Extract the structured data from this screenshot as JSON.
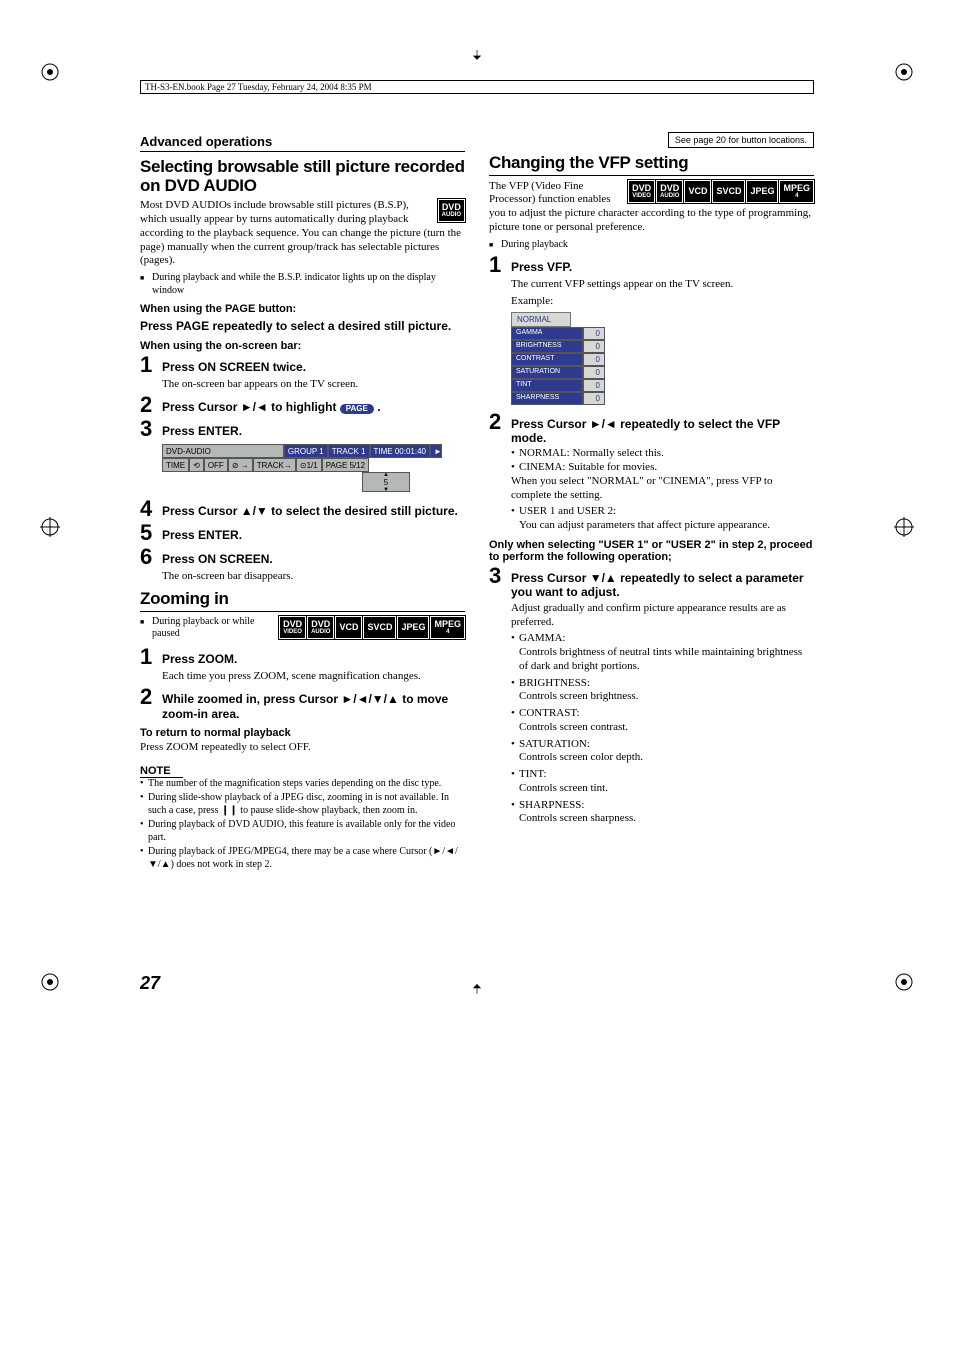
{
  "header_line": "TH-S3-EN.book  Page 27  Tuesday, February 24, 2004  8:35 PM",
  "section_header": "Advanced operations",
  "see_page": "See page 20 for button locations.",
  "page_number": "27",
  "badges": {
    "dvd_video": {
      "t": "DVD",
      "s": "VIDEO"
    },
    "dvd_audio": {
      "t": "DVD",
      "s": "AUDIO"
    },
    "vcd": "VCD",
    "svcd": "SVCD",
    "jpeg": "JPEG",
    "mpeg4": {
      "t": "MPEG",
      "s": "4"
    }
  },
  "left": {
    "topic1": "Selecting browsable still picture recorded on DVD AUDIO",
    "intro1": "Most DVD AUDIOs include browsable still pictures (B.S.P), which usually appear by turns automatically during playback according to the playback sequence. You can change the picture (turn the page) manually when the current group/track has selectable pictures (pages).",
    "bullet1": "During playback and while the B.S.P. indicator lights up on the display window",
    "when_page": "When using the PAGE button:",
    "press_page": "Press PAGE repeatedly to select a desired still picture.",
    "when_osb": "When using the on-screen bar:",
    "s1": "Press ON SCREEN twice.",
    "s1_sub": "The on-screen bar appears on the TV screen.",
    "s2": "Press Cursor ►/◄ to highlight ",
    "s2_pill": "PAGE",
    "s3": "Press ENTER.",
    "osd": {
      "label": "DVD-AUDIO",
      "group": "GROUP 1",
      "track": "TRACK 1",
      "time": "TIME 00:01:40",
      "row2_time": "TIME",
      "row2_off": "OFF",
      "row2_track": "TRACK",
      "row2_frac": "1/1",
      "row2_page": "PAGE 5/12",
      "indicator": "5"
    },
    "s4": "Press Cursor ▲/▼ to select the desired still picture.",
    "s5": "Press ENTER.",
    "s6": "Press ON SCREEN.",
    "s6_sub": "The on-screen bar disappears.",
    "topic2": "Zooming in",
    "zoom_bullet": "During playback or while paused",
    "z1": "Press ZOOM.",
    "z1_sub": "Each time you press ZOOM, scene magnification changes.",
    "z2": "While zoomed in, press Cursor ►/◄/▼/▲ to move zoom-in area.",
    "return_h": "To return to normal playback",
    "return_t": "Press ZOOM repeatedly to select OFF.",
    "note": "NOTE",
    "n1": "The number of the magnification steps varies depending on the disc type.",
    "n2": "During slide-show playback of a JPEG disc, zooming in is not available. In such a case, press ❙❙ to pause slide-show playback, then zoom in.",
    "n3": "During playback of DVD AUDIO, this feature is available only for the video part.",
    "n4": "During playback of JPEG/MPEG4, there may be a case where Cursor (►/◄/▼/▲) does not work in step 2."
  },
  "right": {
    "topic": "Changing the VFP setting",
    "intro": "The VFP (Video Fine Processor) function enables you to adjust the picture character according to the type of programming, picture tone or personal preference.",
    "bullet": "During playback",
    "s1": "Press VFP.",
    "s1_sub": "The current VFP settings appear on the TV screen.",
    "example": "Example:",
    "vfp": {
      "head": "NORMAL",
      "rows": [
        {
          "l": "GAMMA",
          "v": "0"
        },
        {
          "l": "BRIGHTNESS",
          "v": "0"
        },
        {
          "l": "CONTRAST",
          "v": "0"
        },
        {
          "l": "SATURATION",
          "v": "0"
        },
        {
          "l": "TINT",
          "v": "0"
        },
        {
          "l": "SHARPNESS",
          "v": "0"
        }
      ]
    },
    "s2": "Press Cursor ►/◄ repeatedly to select the VFP mode.",
    "s2_b1": "NORMAL: Normally select this.",
    "s2_b2": "CINEMA:  Suitable for movies.",
    "s2_t1": "When you select \"NORMAL\" or \"CINEMA\", press VFP to complete the setting.",
    "s2_b3": "USER 1 and USER 2:",
    "s2_t2": "You can adjust parameters that affect picture appearance.",
    "only_when": "Only when selecting \"USER 1\" or \"USER 2\" in step 2, proceed to perform the following operation;",
    "s3": "Press Cursor ▼/▲ repeatedly to select a parameter you want to adjust.",
    "s3_sub": "Adjust gradually and confirm picture appearance results are as preferred.",
    "params": [
      {
        "h": "GAMMA:",
        "t": "Controls brightness of neutral tints while maintaining brightness of dark and bright portions."
      },
      {
        "h": "BRIGHTNESS:",
        "t": "Controls screen brightness."
      },
      {
        "h": "CONTRAST:",
        "t": "Controls screen contrast."
      },
      {
        "h": "SATURATION:",
        "t": "Controls screen color depth."
      },
      {
        "h": "TINT:",
        "t": "Controls screen tint."
      },
      {
        "h": "SHARPNESS:",
        "t": "Controls screen sharpness."
      }
    ]
  }
}
